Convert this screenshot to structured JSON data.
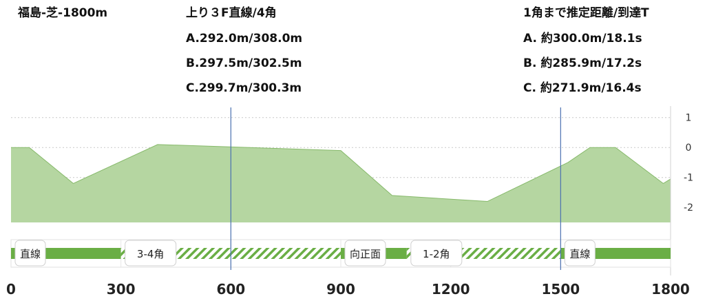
{
  "title": "福島-芝-1800m",
  "straight_info": {
    "heading": "上り３F直線/4角",
    "rows": [
      "A.292.0m/308.0m",
      "B.297.5m/302.5m",
      "C.299.7m/300.3m"
    ]
  },
  "corner_info": {
    "heading": "1角まで推定距離/到達T",
    "rows": [
      "A. 約300.0m/18.1s",
      "B. 約285.9m/17.2s",
      "C. 約271.9m/16.4s"
    ]
  },
  "colors": {
    "elevation_fill": "#b5d6a1",
    "elevation_line": "#86b96a",
    "straight": "#6aae45",
    "corner_hatch": "#6aae45",
    "marker_line": "#4a70b0"
  },
  "chart_data": {
    "type": "area",
    "x": [
      0,
      50,
      170,
      400,
      900,
      1040,
      1300,
      1520,
      1580,
      1650,
      1780,
      1800
    ],
    "values": [
      0,
      0,
      -1.2,
      0.1,
      -0.1,
      -1.6,
      -1.8,
      -0.5,
      0,
      0,
      -1.2,
      -1.05
    ],
    "xlim": [
      0,
      1800
    ],
    "ylim": [
      -2.5,
      1.2
    ],
    "xticks": [
      0,
      300,
      600,
      900,
      1200,
      1500,
      1800
    ],
    "yticks": [
      1,
      0,
      -1,
      -2
    ],
    "markers": [
      600,
      1500
    ],
    "segments": [
      {
        "from": 0,
        "to": 300,
        "kind": "straight",
        "label": "直線"
      },
      {
        "from": 300,
        "to": 900,
        "kind": "corner",
        "label": "3-4角"
      },
      {
        "from": 900,
        "to": 1080,
        "kind": "straight",
        "label": "向正面"
      },
      {
        "from": 1080,
        "to": 1500,
        "kind": "corner",
        "label": "1-2角"
      },
      {
        "from": 1500,
        "to": 1800,
        "kind": "straight",
        "label": "直線"
      }
    ]
  }
}
